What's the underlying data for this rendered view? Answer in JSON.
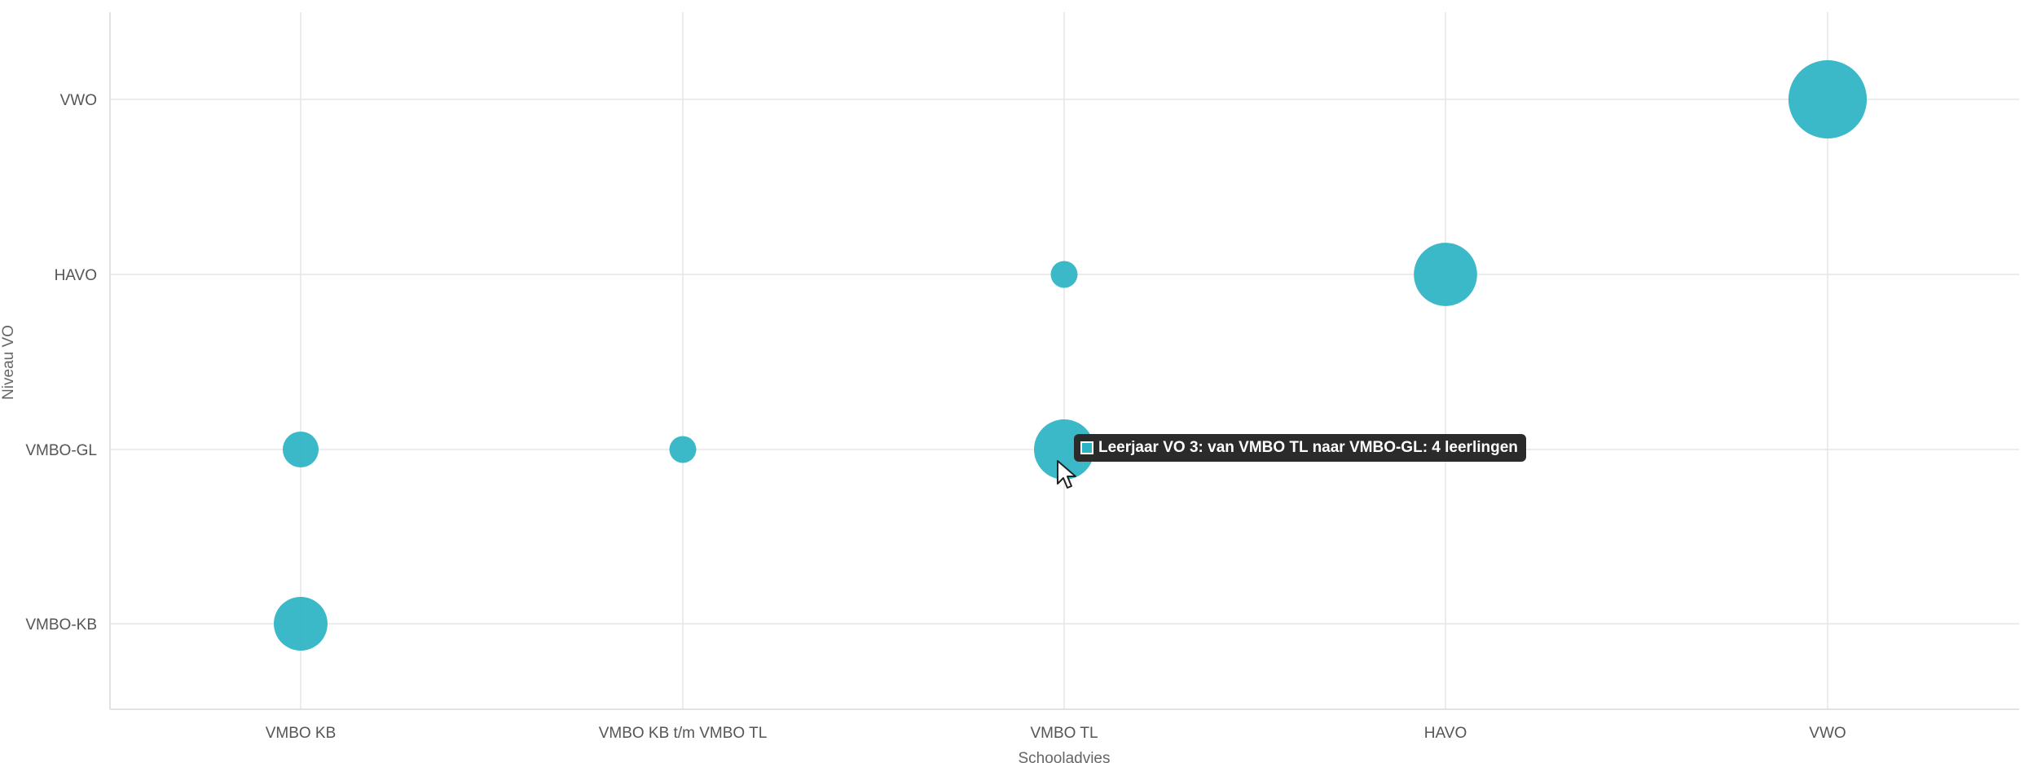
{
  "chart_data": {
    "type": "scatter",
    "xlabel": "Schooladvies",
    "ylabel": "Niveau VO",
    "x_categories": [
      "VMBO KB",
      "VMBO KB t/m VMBO TL",
      "VMBO TL",
      "HAVO",
      "VWO"
    ],
    "y_categories": [
      "VMBO-KB",
      "VMBO-GL",
      "HAVO",
      "VWO"
    ],
    "grid": true,
    "color": "#2bb3c4",
    "points": [
      {
        "x": "VMBO KB",
        "y": "VMBO-KB",
        "size": 3
      },
      {
        "x": "VMBO KB",
        "y": "VMBO-GL",
        "size": 1
      },
      {
        "x": "VMBO KB t/m VMBO TL",
        "y": "VMBO-GL",
        "size": 0.4
      },
      {
        "x": "VMBO TL",
        "y": "VMBO-GL",
        "size": 4
      },
      {
        "x": "VMBO TL",
        "y": "HAVO",
        "size": 0.4
      },
      {
        "x": "HAVO",
        "y": "HAVO",
        "size": 4.5
      },
      {
        "x": "VWO",
        "y": "VWO",
        "size": 7.5
      }
    ]
  },
  "tooltip": {
    "text": "Leerjaar VO 3: van VMBO TL naar VMBO-GL: 4 leerlingen",
    "swatch_color": "#2bb3c4"
  }
}
